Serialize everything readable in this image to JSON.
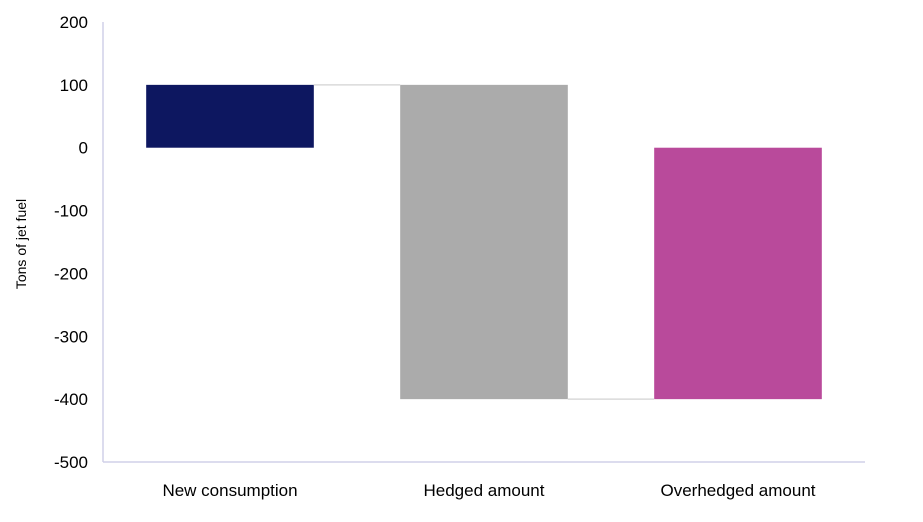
{
  "chart_data": {
    "type": "bar",
    "subtype": "waterfall",
    "title": "",
    "xlabel": "",
    "ylabel": "Tons of jet fuel",
    "ylim": [
      -500,
      200
    ],
    "yticks": [
      200,
      100,
      0,
      -100,
      -200,
      -300,
      -400,
      -500
    ],
    "grid": false,
    "legend": "none",
    "categories": [
      "New consumption",
      "Hedged amount",
      "Overhedged amount"
    ],
    "bars": [
      {
        "label": "New consumption",
        "start": 0,
        "end": 100,
        "color": "#0d1760"
      },
      {
        "label": "Hedged amount",
        "start": 100,
        "end": -400,
        "color": "#ababab"
      },
      {
        "label": "Overhedged amount",
        "start": 0,
        "end": -400,
        "color": "#b94a9b"
      }
    ],
    "connectors": [
      {
        "value": 100,
        "from": 0,
        "to": 1
      },
      {
        "value": -400,
        "from": 1,
        "to": 2
      }
    ],
    "axis_color": "#d0d0e8",
    "connector_color": "#d9d9d9"
  }
}
